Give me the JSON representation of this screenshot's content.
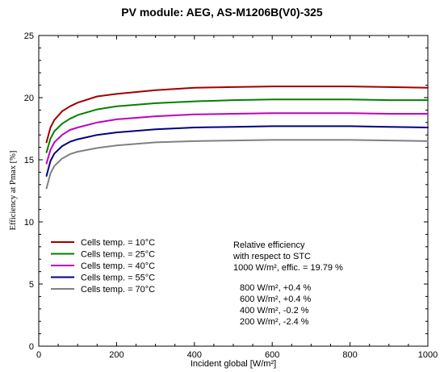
{
  "chart_data": {
    "type": "line",
    "title": "PV module:  AEG,  AS-M1206B(V0)-325",
    "xlabel": "Incident global [W/m²]",
    "ylabel": "Efficiency at Pmax [%]",
    "xlim": [
      0,
      1000
    ],
    "ylim": [
      0,
      25
    ],
    "xticks": [
      0,
      200,
      400,
      600,
      800,
      1000
    ],
    "yticks": [
      0,
      5,
      10,
      15,
      20,
      25
    ],
    "xtick_labels": [
      "0",
      "200",
      "400",
      "600",
      "800",
      "1000"
    ],
    "ytick_labels": [
      "0",
      "5",
      "10",
      "15",
      "20",
      "25"
    ],
    "grid": false,
    "legend_position": "bottom-left",
    "series": [
      {
        "name": "Cells temp. = 10°C",
        "color": "#a00000",
        "x": [
          20,
          30,
          40,
          60,
          80,
          100,
          150,
          200,
          300,
          400,
          500,
          600,
          700,
          800,
          900,
          1000
        ],
        "y": [
          16.4,
          17.6,
          18.2,
          18.9,
          19.3,
          19.6,
          20.1,
          20.3,
          20.6,
          20.8,
          20.85,
          20.9,
          20.9,
          20.9,
          20.85,
          20.8
        ]
      },
      {
        "name": "Cells temp. = 25°C",
        "color": "#008000",
        "x": [
          20,
          30,
          40,
          60,
          80,
          100,
          150,
          200,
          300,
          400,
          500,
          600,
          700,
          800,
          900,
          1000
        ],
        "y": [
          15.6,
          16.7,
          17.3,
          17.9,
          18.3,
          18.6,
          19.05,
          19.3,
          19.55,
          19.7,
          19.8,
          19.85,
          19.85,
          19.85,
          19.8,
          19.8
        ]
      },
      {
        "name": "Cells temp. = 40°C",
        "color": "#c000c0",
        "x": [
          20,
          30,
          40,
          60,
          80,
          100,
          150,
          200,
          300,
          400,
          500,
          600,
          700,
          800,
          900,
          1000
        ],
        "y": [
          14.7,
          15.8,
          16.4,
          17.0,
          17.4,
          17.6,
          18.0,
          18.25,
          18.5,
          18.65,
          18.7,
          18.75,
          18.75,
          18.75,
          18.7,
          18.7
        ]
      },
      {
        "name": "Cells temp. = 55°C",
        "color": "#000080",
        "x": [
          20,
          30,
          40,
          60,
          80,
          100,
          150,
          200,
          300,
          400,
          500,
          600,
          700,
          800,
          900,
          1000
        ],
        "y": [
          13.7,
          14.9,
          15.5,
          16.1,
          16.45,
          16.65,
          17.0,
          17.2,
          17.45,
          17.6,
          17.65,
          17.7,
          17.7,
          17.7,
          17.65,
          17.6
        ]
      },
      {
        "name": "Cells temp. = 70°C",
        "color": "#808080",
        "x": [
          20,
          30,
          40,
          60,
          80,
          100,
          150,
          200,
          300,
          400,
          500,
          600,
          700,
          800,
          900,
          1000
        ],
        "y": [
          12.7,
          13.9,
          14.5,
          15.1,
          15.45,
          15.65,
          15.95,
          16.15,
          16.4,
          16.5,
          16.55,
          16.6,
          16.6,
          16.6,
          16.55,
          16.5
        ]
      }
    ],
    "annotation": {
      "lines": [
        "Relative efficiency",
        "with respect to STC",
        "1000 W/m²,  effic. = 19.79 %",
        "",
        "800 W/m²,  +0.4 %",
        "600 W/m²,  +0.4 %",
        "400 W/m²,  -0.2 %",
        "200 W/m²,  -2.4 %"
      ]
    }
  }
}
